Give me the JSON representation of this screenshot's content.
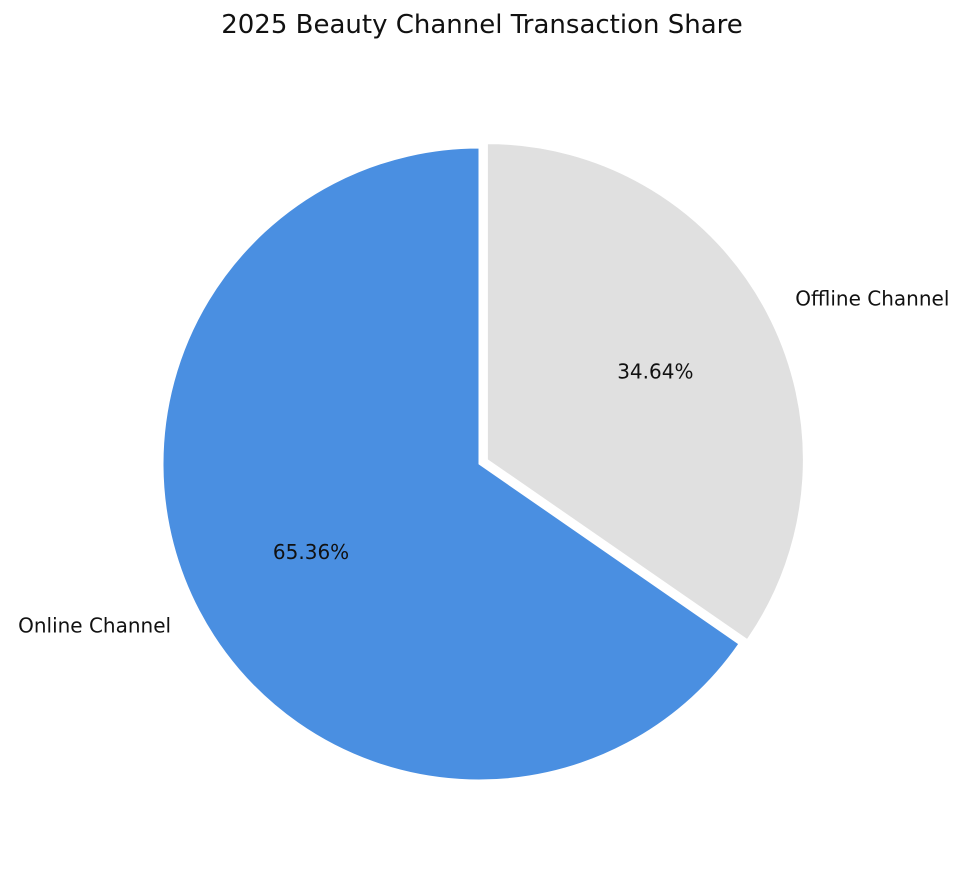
{
  "chart_data": {
    "type": "pie",
    "title": "2025 Beauty Channel Transaction Share",
    "categories": [
      "Online Channel",
      "Offline Channel"
    ],
    "values": [
      65.36,
      34.64
    ],
    "value_labels": [
      "65.36%",
      "34.64%"
    ],
    "colors": [
      "#4A8FE1",
      "#E0E0E0"
    ],
    "explode": [
      0,
      0.03
    ],
    "start": "top, counterclockwise",
    "legend": "none"
  }
}
